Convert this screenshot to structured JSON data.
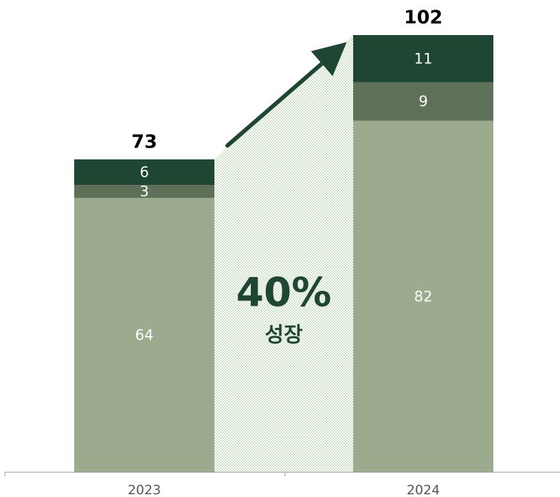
{
  "chart_data": {
    "type": "bar",
    "stacked": true,
    "categories": [
      "2023",
      "2024"
    ],
    "series": [
      {
        "values": [
          64,
          82
        ],
        "color": "#9caa8d"
      },
      {
        "values": [
          3,
          9
        ],
        "color": "#5e7158"
      },
      {
        "values": [
          6,
          11
        ],
        "color": "#1e4632"
      }
    ],
    "totals": [
      "73",
      "102"
    ],
    "ylim": [
      0,
      102
    ],
    "grid": false,
    "legend": "none",
    "annotation": {
      "value": "40%",
      "label": "성장",
      "color": "#1e4632",
      "band_color": "#cfe3c6"
    }
  }
}
